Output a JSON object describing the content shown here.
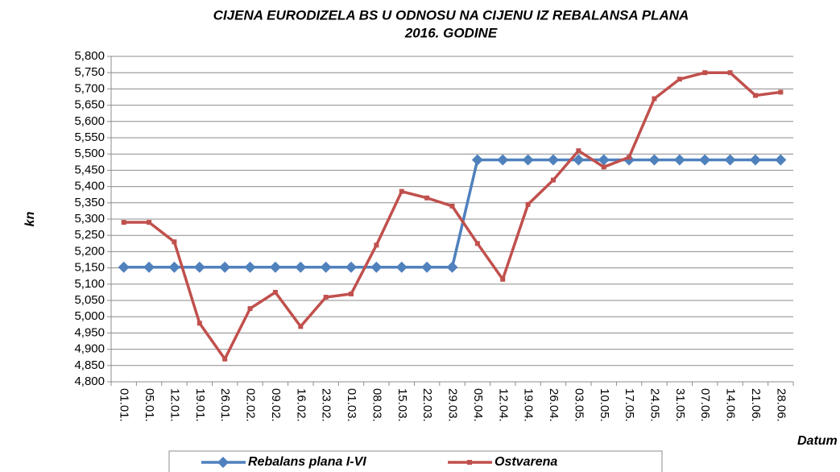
{
  "chart_data": {
    "type": "line",
    "title": [
      "CIJENA EURODIZELA BS U ODNOSU NA CIJENU IZ REBALANSA PLANA",
      "2016. GODINE"
    ],
    "y_label": "kn",
    "x_label": "Datum",
    "categories": [
      "01.01.",
      "05.01.",
      "12.01.",
      "19.01.",
      "26.01.",
      "02.02.",
      "09.02.",
      "16.02.",
      "23.02.",
      "01.03.",
      "08.03.",
      "15.03.",
      "22.03.",
      "29.03.",
      "05.04.",
      "12.04.",
      "19.04.",
      "26.04.",
      "03.05.",
      "10.05.",
      "17.05.",
      "24.05.",
      "31.05.",
      "07.06.",
      "14.06.",
      "21.06.",
      "28.06."
    ],
    "series": [
      {
        "name": "Rebalans plana I-VI",
        "color": "#4f81bd",
        "marker": "diamond",
        "values": [
          5.152,
          5.152,
          5.152,
          5.152,
          5.152,
          5.152,
          5.152,
          5.152,
          5.152,
          5.152,
          5.152,
          5.152,
          5.152,
          5.152,
          5.482,
          5.482,
          5.482,
          5.482,
          5.482,
          5.482,
          5.482,
          5.482,
          5.482,
          5.482,
          5.482,
          5.482,
          5.482
        ]
      },
      {
        "name": "Ostvarena",
        "color": "#c0504d",
        "marker": "square",
        "values": [
          5.29,
          5.29,
          5.23,
          4.98,
          4.87,
          5.025,
          5.075,
          4.97,
          5.06,
          5.07,
          5.22,
          5.385,
          5.365,
          5.34,
          5.225,
          5.115,
          5.345,
          5.42,
          5.51,
          5.46,
          5.49,
          5.67,
          5.73,
          5.75,
          5.75,
          5.68,
          5.69
        ]
      }
    ],
    "ylim": [
      4.8,
      5.8
    ],
    "yticks": [
      {
        "value": 4.8,
        "label": "4,800"
      },
      {
        "value": 4.85,
        "label": "4,850"
      },
      {
        "value": 4.9,
        "label": "4,900"
      },
      {
        "value": 4.95,
        "label": "4,950"
      },
      {
        "value": 5.0,
        "label": "5,000"
      },
      {
        "value": 5.05,
        "label": "5,050"
      },
      {
        "value": 5.1,
        "label": "5,100"
      },
      {
        "value": 5.15,
        "label": "5,150"
      },
      {
        "value": 5.2,
        "label": "5,200"
      },
      {
        "value": 5.25,
        "label": "5,250"
      },
      {
        "value": 5.3,
        "label": "5,300"
      },
      {
        "value": 5.35,
        "label": "5,350"
      },
      {
        "value": 5.4,
        "label": "5,400"
      },
      {
        "value": 5.45,
        "label": "5,450"
      },
      {
        "value": 5.5,
        "label": "5,500"
      },
      {
        "value": 5.55,
        "label": "5,550"
      },
      {
        "value": 5.6,
        "label": "5,600"
      },
      {
        "value": 5.65,
        "label": "5,650"
      },
      {
        "value": 5.7,
        "label": "5,700"
      },
      {
        "value": 5.75,
        "label": "5,750"
      },
      {
        "value": 5.8,
        "label": "5,800"
      }
    ],
    "grid": true,
    "legend": "bottom"
  }
}
